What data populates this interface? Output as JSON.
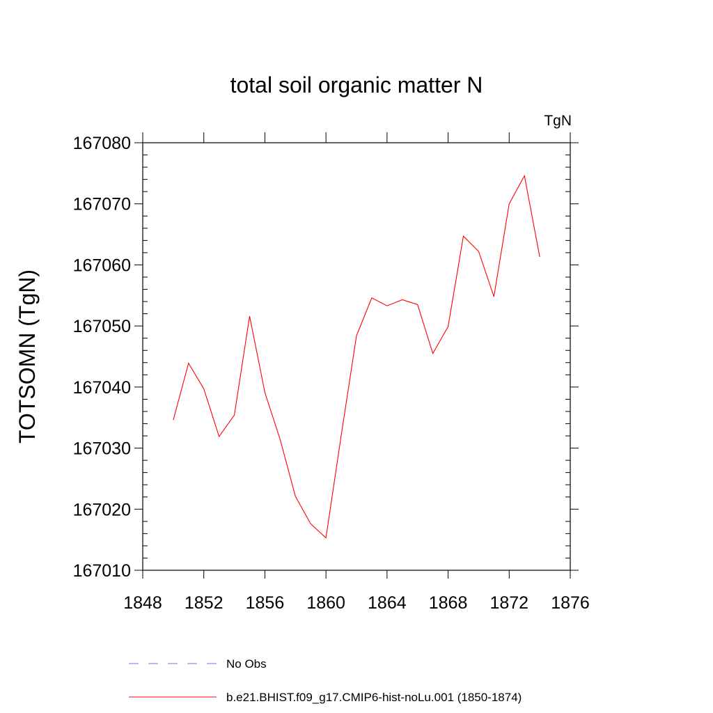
{
  "chart_data": {
    "type": "line",
    "title": "total soil organic matter N",
    "units_label": "TgN",
    "ylabel": "TOTSOMN  (TgN)",
    "xlabel": "",
    "xlim": [
      1848,
      1876
    ],
    "ylim": [
      167010,
      167080
    ],
    "x_ticks": [
      1848,
      1852,
      1856,
      1860,
      1864,
      1868,
      1872,
      1876
    ],
    "y_ticks": [
      167010,
      167020,
      167030,
      167040,
      167050,
      167060,
      167070,
      167080
    ],
    "x_tick_labels": [
      "1848",
      "1852",
      "1856",
      "1860",
      "1864",
      "1868",
      "1872",
      "1876"
    ],
    "y_tick_labels": [
      "167010",
      "167020",
      "167030",
      "167040",
      "167050",
      "167060",
      "167070",
      "167080"
    ],
    "grid": false,
    "legend_position": "bottom",
    "series": [
      {
        "name": "b.e21.BHIST.f09_g17.CMIP6-hist-noLu.001 (1850-1874)",
        "color": "#ff0000",
        "style": "solid",
        "x": [
          1850,
          1851,
          1852,
          1853,
          1854,
          1855,
          1856,
          1857,
          1858,
          1859,
          1860,
          1861,
          1862,
          1863,
          1864,
          1865,
          1866,
          1867,
          1868,
          1869,
          1870,
          1871,
          1872,
          1873,
          1874
        ],
        "y": [
          167034.6,
          167043.9,
          167039.7,
          167031.9,
          167035.4,
          167051.6,
          167039.1,
          167031.4,
          167022.1,
          167017.6,
          167015.3,
          167032.1,
          167048.4,
          167054.6,
          167053.3,
          167054.3,
          167053.5,
          167045.5,
          167049.9,
          167064.7,
          167062.2,
          167054.8,
          167070.0,
          167074.6,
          167061.3
        ]
      }
    ],
    "legend": [
      {
        "label": "No Obs",
        "color": "#7b68ee",
        "style": "dashed"
      },
      {
        "label": "b.e21.BHIST.f09_g17.CMIP6-hist-noLu.001 (1850-1874)",
        "color": "#ff0000",
        "style": "solid"
      }
    ]
  }
}
